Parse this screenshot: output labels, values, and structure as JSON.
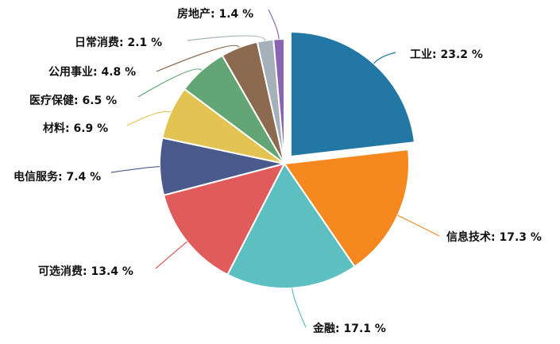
{
  "chart_data": {
    "type": "pie",
    "title": "",
    "legend": "none",
    "slices": [
      {
        "label": "工业",
        "value": 23.2,
        "display": "工业: 23.2 %",
        "color": "#2277a4",
        "exploded": true
      },
      {
        "label": "信息技术",
        "value": 17.3,
        "display": "信息技术: 17.3 %",
        "color": "#f5891f",
        "exploded": false
      },
      {
        "label": "金融",
        "value": 17.1,
        "display": "金融: 17.1 %",
        "color": "#5dbfbf",
        "exploded": false
      },
      {
        "label": "可选消费",
        "value": 13.4,
        "display": "可选消费: 13.4 %",
        "color": "#e05b5b",
        "exploded": false
      },
      {
        "label": "电信服务",
        "value": 7.4,
        "display": "电信服务: 7.4 %",
        "color": "#4a5a8c",
        "exploded": false
      },
      {
        "label": "材料",
        "value": 6.9,
        "display": "材料: 6.9 %",
        "color": "#e3c352",
        "exploded": false
      },
      {
        "label": "医疗保健",
        "value": 6.5,
        "display": "医疗保健: 6.5 %",
        "color": "#63a574",
        "exploded": false
      },
      {
        "label": "公用事业",
        "value": 4.8,
        "display": "公用事业: 4.8 %",
        "color": "#8c6a50",
        "exploded": false
      },
      {
        "label": "日常消费",
        "value": 2.1,
        "display": "日常消费: 2.1 %",
        "color": "#a5b0b8",
        "exploded": false
      },
      {
        "label": "房地产",
        "value": 1.4,
        "display": "房地产: 1.4 %",
        "color": "#8a64b4",
        "exploded": false
      }
    ]
  }
}
